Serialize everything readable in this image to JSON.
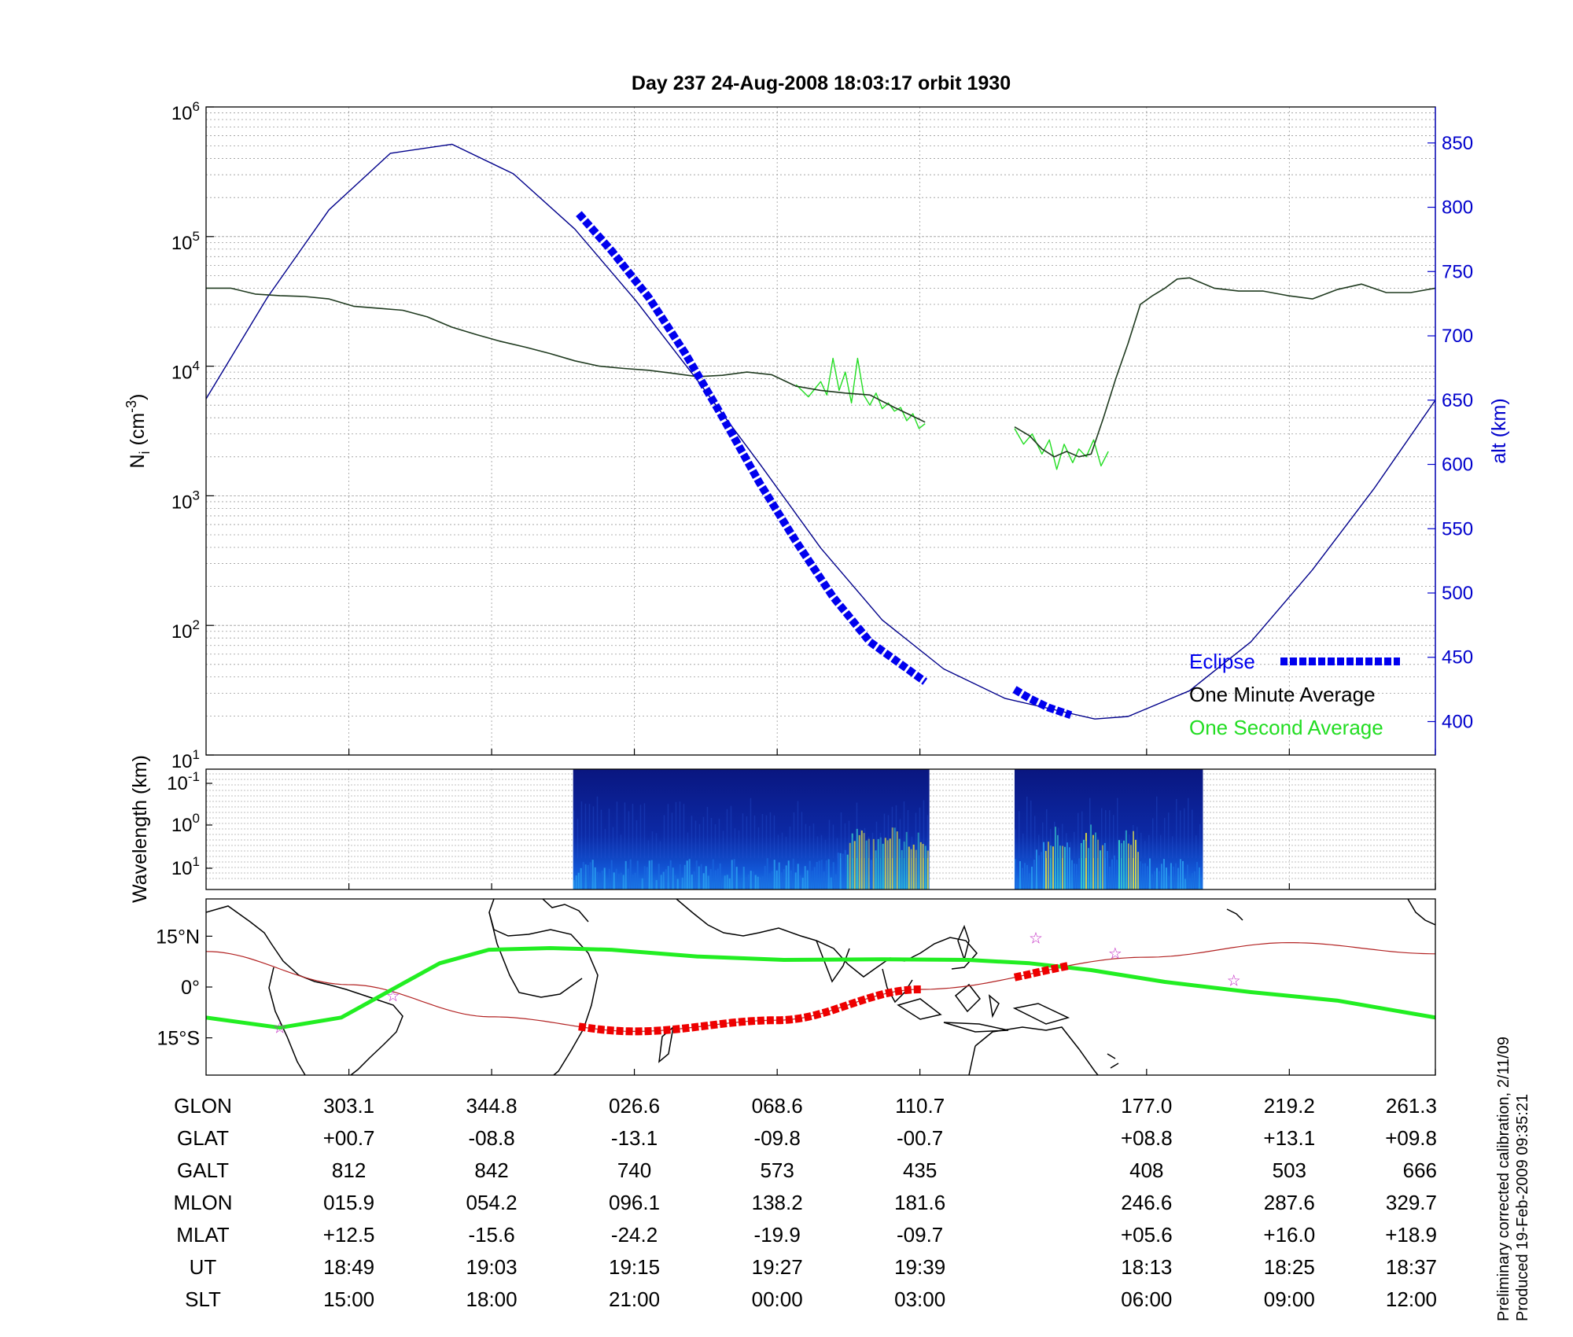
{
  "title": "Day 237  24-Aug-2008 18:03:17   orbit 1930",
  "footer": {
    "line1": "Preliminary corrected calibration, 2/11/09",
    "line2": "Produced 19-Feb-2009 09:35:21"
  },
  "colors": {
    "one_minute": "#1f3a1f",
    "one_second": "#22dd22",
    "eclipse": "#0000ee",
    "altitude": "#00008b",
    "track": "#b22222",
    "eclipse_track": "#ee0000",
    "magnetic_equator": "#22ee22",
    "spectrogram_bg": "#0a1a8c"
  },
  "chart_data": [
    {
      "type": "line",
      "title": "Day 237  24-Aug-2008 18:03:17   orbit 1930",
      "ylabel": "N_i (cm^-3)",
      "y2label": "alt (km)",
      "yscale": "log",
      "ylim": [
        10,
        1000000
      ],
      "y_ticks": [
        "10^1",
        "10^2",
        "10^3",
        "10^4",
        "10^5",
        "10^6"
      ],
      "y2lim": [
        374,
        878
      ],
      "y2_ticks": [
        "400",
        "450",
        "500",
        "550",
        "600",
        "650",
        "700",
        "750",
        "800",
        "850"
      ],
      "xlim": [
        0,
        1
      ],
      "x_ticks": [
        0.1162,
        0.2323,
        0.3484,
        0.4646,
        0.5807,
        0.7651,
        0.8812,
        1.0
      ],
      "grid": true,
      "legend_position": "bottom-right",
      "legend": [
        "Eclipse",
        "One Minute Average",
        "One Second Average"
      ],
      "series": [
        {
          "name": "One Minute Average",
          "axis": "left",
          "x": [
            0,
            0.02,
            0.04,
            0.06,
            0.08,
            0.1,
            0.12,
            0.14,
            0.16,
            0.18,
            0.2,
            0.22,
            0.24,
            0.26,
            0.28,
            0.3,
            0.32,
            0.34,
            0.36,
            0.38,
            0.4,
            0.42,
            0.44,
            0.46,
            0.48,
            0.5,
            0.52,
            0.54,
            0.56,
            0.58,
            0.5849
          ],
          "y": [
            40000,
            40000,
            36000,
            35000,
            34500,
            33000,
            29000,
            28000,
            27000,
            24000,
            20000,
            17500,
            15500,
            14000,
            12500,
            11000,
            10000,
            9600,
            9300,
            8800,
            8300,
            8500,
            9000,
            8600,
            7000,
            6500,
            6200,
            6000,
            4800,
            3900,
            3700
          ]
        },
        {
          "name": "One Minute Average",
          "axis": "left",
          "x": [
            0.6577,
            0.67,
            0.68,
            0.69,
            0.7,
            0.71,
            0.72,
            0.73,
            0.74,
            0.75,
            0.76,
            0.77,
            0.78,
            0.79,
            0.8,
            0.82,
            0.84,
            0.86,
            0.88,
            0.9,
            0.92,
            0.94,
            0.96,
            0.98,
            1.0
          ],
          "y": [
            3400,
            2900,
            2300,
            2000,
            2200,
            2000,
            2100,
            4000,
            8000,
            15000,
            30000,
            35000,
            40000,
            47000,
            48000,
            40000,
            38000,
            38000,
            35000,
            33000,
            39000,
            43000,
            37000,
            37000,
            40000
          ]
        },
        {
          "name": "One Second Average",
          "axis": "left",
          "x": [
            0.48,
            0.49,
            0.5,
            0.505,
            0.51,
            0.515,
            0.52,
            0.525,
            0.53,
            0.535,
            0.54,
            0.545,
            0.55,
            0.555,
            0.56,
            0.565,
            0.57,
            0.575,
            0.58,
            0.5849
          ],
          "y": [
            7200,
            5800,
            7600,
            6000,
            11500,
            6500,
            9000,
            5200,
            11500,
            6000,
            5000,
            6200,
            4700,
            5200,
            4500,
            4800,
            3800,
            4300,
            3300,
            3600
          ]
        },
        {
          "name": "One Second Average",
          "axis": "left",
          "x": [
            0.6577,
            0.665,
            0.672,
            0.68,
            0.686,
            0.692,
            0.698,
            0.705,
            0.71,
            0.716,
            0.722,
            0.728,
            0.734
          ],
          "y": [
            3300,
            2500,
            3000,
            2100,
            2700,
            1600,
            2500,
            1800,
            2300,
            2000,
            2700,
            1700,
            2200
          ]
        },
        {
          "name": "Eclipse",
          "axis": "right",
          "x": [
            0.3032,
            0.33,
            0.36,
            0.39,
            0.42,
            0.45,
            0.48,
            0.51,
            0.54,
            0.5849
          ],
          "y": [
            795,
            766,
            730,
            686,
            637,
            586,
            540,
            497,
            462,
            431
          ]
        },
        {
          "name": "Eclipse",
          "axis": "right",
          "x": [
            0.6577,
            0.67,
            0.685,
            0.7035
          ],
          "y": [
            425,
            418,
            411,
            405
          ]
        },
        {
          "name": "alt (km)",
          "axis": "right",
          "x": [
            0,
            0.05,
            0.1,
            0.15,
            0.2,
            0.25,
            0.3,
            0.35,
            0.4,
            0.45,
            0.5,
            0.55,
            0.6,
            0.65,
            0.7,
            0.723,
            0.75,
            0.8,
            0.85,
            0.9,
            0.95,
            1.0
          ],
          "y": [
            651,
            730,
            798,
            842,
            849,
            826,
            783,
            727,
            665,
            601,
            535,
            479,
            441,
            418,
            407,
            402,
            404,
            424,
            462,
            518,
            581,
            650
          ]
        }
      ]
    },
    {
      "type": "heatmap",
      "ylabel": "Wavelength (km)",
      "y_ticks": [
        "10^-1",
        "10^0",
        "10^1"
      ],
      "segments": [
        {
          "x_start": 0.2986,
          "x_end": 0.5884
        },
        {
          "x_start": 0.6577,
          "x_end": 0.8109
        }
      ],
      "high_power_x": [
        0.53,
        0.55,
        0.56,
        0.57,
        0.58,
        0.69,
        0.72,
        0.75
      ]
    },
    {
      "type": "map",
      "y_ticks": [
        "15°N",
        "0°",
        "15°S"
      ],
      "ylim": [
        -26,
        26
      ],
      "track": {
        "x": [
          0,
          0.1162,
          0.2323,
          0.3484,
          0.4646,
          0.5807,
          0.7651,
          0.8812,
          1.0
        ],
        "lat": [
          10.5,
          0.7,
          -8.8,
          -13.1,
          -9.8,
          -0.7,
          8.8,
          13.1,
          9.8
        ]
      },
      "eclipse_track": [
        {
          "x_start": 0.3032,
          "x_end": 0.5849
        },
        {
          "x_start": 0.6577,
          "x_end": 0.7035
        }
      ],
      "magnetic_equator": {
        "x": [
          0,
          0.06,
          0.11,
          0.15,
          0.19,
          0.23,
          0.28,
          0.33,
          0.4,
          0.47,
          0.55,
          0.62,
          0.67,
          0.72,
          0.78,
          0.85,
          0.92,
          1.0
        ],
        "lat": [
          -9,
          -12,
          -9,
          -1,
          7,
          11,
          11.5,
          11,
          9,
          8,
          8.2,
          8,
          7,
          5,
          1.5,
          -1.5,
          -4,
          -9
        ]
      },
      "stars": [
        {
          "x": 0.06,
          "lat": -12
        },
        {
          "x": 0.152,
          "lat": -2.5
        },
        {
          "x": 0.675,
          "lat": 14.5
        },
        {
          "x": 0.7395,
          "lat": 10
        },
        {
          "x": 0.836,
          "lat": 2
        }
      ]
    }
  ],
  "info_table": {
    "headers": [
      "GLON",
      "GLAT",
      "GALT",
      "MLON",
      "MLAT",
      "UT",
      "SLT"
    ],
    "columns": [
      [
        "303.1",
        "+00.7",
        "812",
        "015.9",
        "+12.5",
        "18:49",
        "15:00"
      ],
      [
        "344.8",
        "-08.8",
        "842",
        "054.2",
        "-15.6",
        "19:03",
        "18:00"
      ],
      [
        "026.6",
        "-13.1",
        "740",
        "096.1",
        "-24.2",
        "19:15",
        "21:00"
      ],
      [
        "068.6",
        "-09.8",
        "573",
        "138.2",
        "-19.9",
        "19:27",
        "00:00"
      ],
      [
        "110.7",
        "-00.7",
        "435",
        "181.6",
        "-09.7",
        "19:39",
        "03:00"
      ],
      [
        "177.0",
        "+08.8",
        "408",
        "246.6",
        "+05.6",
        "18:13",
        "06:00"
      ],
      [
        "219.2",
        "+13.1",
        "503",
        "287.6",
        "+16.0",
        "18:25",
        "09:00"
      ],
      [
        "261.3",
        "+09.8",
        "666",
        "329.7",
        "+18.9",
        "18:37",
        "12:00"
      ]
    ]
  }
}
